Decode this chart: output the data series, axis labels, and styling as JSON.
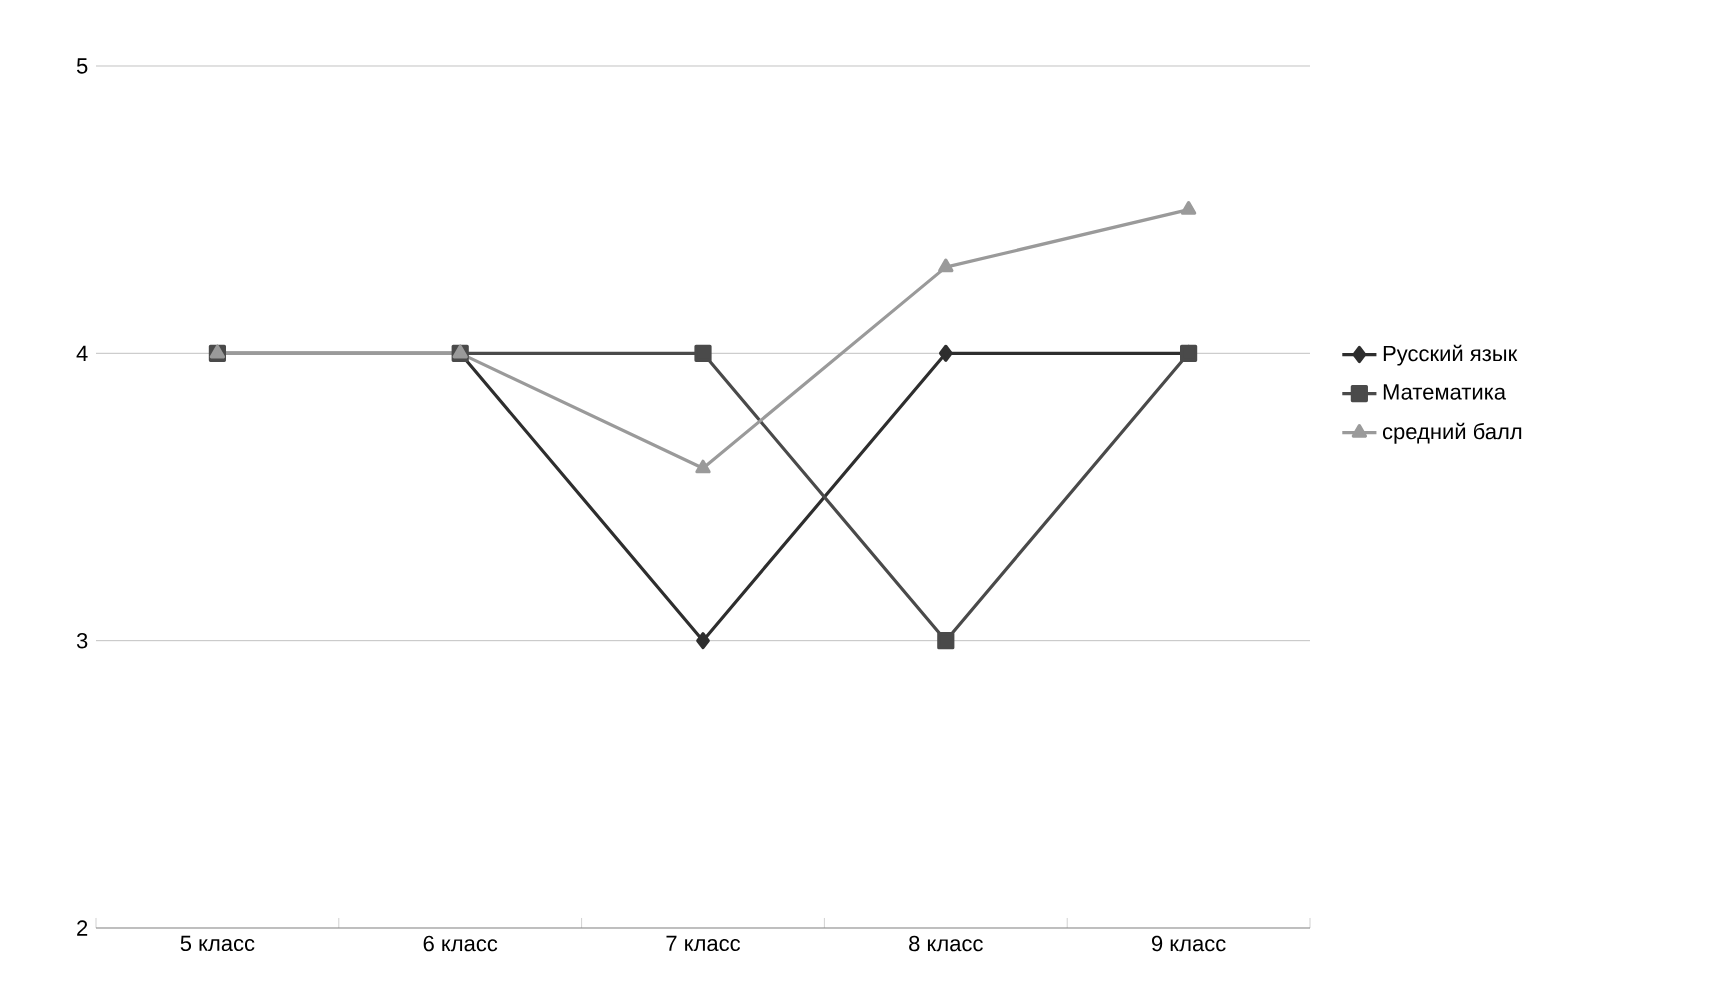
{
  "chart_data": {
    "type": "line",
    "categories": [
      "5 класс",
      "6 класс",
      "7 класс",
      "8 класс",
      "9 класс"
    ],
    "series": [
      {
        "name": "Русский язык",
        "color": "#2e2e2e",
        "marker": "diamond",
        "values": [
          4,
          4,
          3,
          4,
          4
        ]
      },
      {
        "name": "Математика",
        "color": "#4a4a4a",
        "marker": "square",
        "values": [
          4,
          4,
          4,
          3,
          4
        ]
      },
      {
        "name": "средний балл",
        "color": "#9a9a9a",
        "marker": "triangle",
        "values": [
          4,
          4,
          3.6,
          4.3,
          4.5
        ]
      }
    ],
    "ylim": [
      2,
      5
    ],
    "yticks": [
      2,
      3,
      4,
      5
    ],
    "grid": "y",
    "legend": "right"
  }
}
